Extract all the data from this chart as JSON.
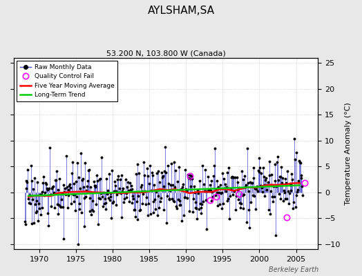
{
  "title": "AYLSHAM,SA",
  "subtitle": "53.200 N, 103.800 W (Canada)",
  "ylabel": "Temperature Anomaly (°C)",
  "watermark": "Berkeley Earth",
  "xlim": [
    1966.5,
    2008.0
  ],
  "ylim": [
    -11,
    26
  ],
  "yticks": [
    -10,
    -5,
    0,
    5,
    10,
    15,
    20,
    25
  ],
  "xticks": [
    1970,
    1975,
    1980,
    1985,
    1990,
    1995,
    2000,
    2005
  ],
  "raw_color": "#4444cc",
  "ma_color": "#ff0000",
  "trend_color": "#00cc00",
  "qc_color": "#ff00ff",
  "background_color": "#e8e8e8",
  "plot_bg_color": "#ffffff",
  "seed": 17,
  "n_years": 38,
  "start_year": 1968,
  "qc_years": [
    1990.5,
    1993.3,
    1994.1,
    1997.2,
    2003.7,
    2006.2
  ],
  "qc_vals": [
    3.2,
    -1.5,
    -0.8,
    -0.3,
    -4.8,
    1.8
  ]
}
